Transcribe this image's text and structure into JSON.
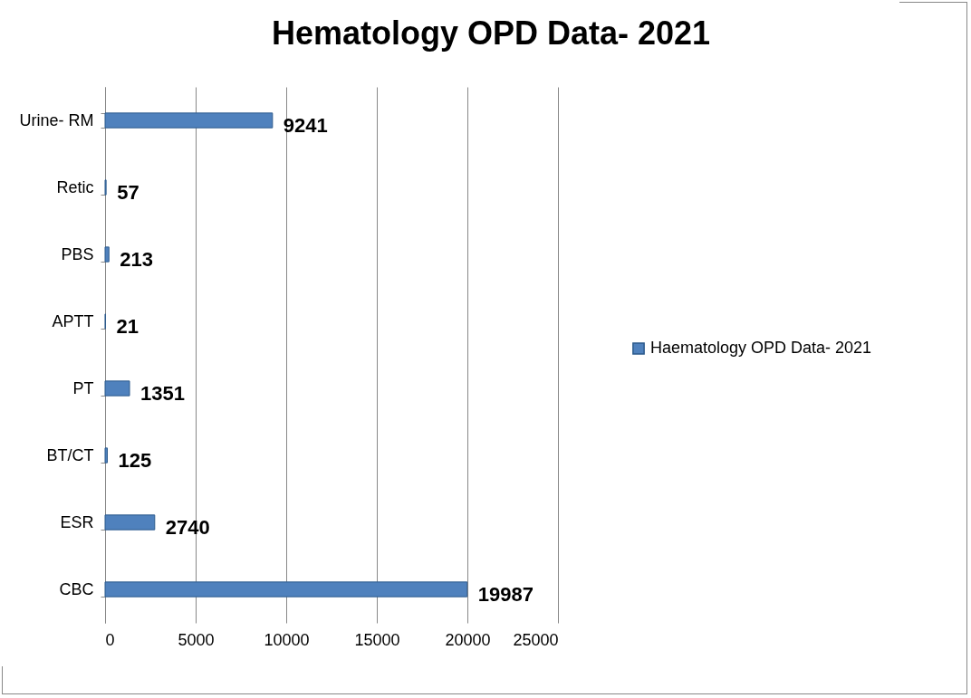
{
  "chart_data": {
    "type": "bar",
    "orientation": "horizontal",
    "title": "Hematology OPD Data- 2021",
    "categories": [
      "Urine- RM",
      "Retic",
      "PBS",
      "APTT",
      "PT",
      "BT/CT",
      "ESR",
      "CBC"
    ],
    "series": [
      {
        "name": "Haematology OPD Data- 2021",
        "color": "#4f81bd",
        "values": [
          9241,
          57,
          213,
          21,
          1351,
          125,
          2740,
          19987
        ]
      }
    ],
    "xlim": [
      0,
      25000
    ],
    "xticks": [
      0,
      5000,
      10000,
      15000,
      20000,
      25000
    ],
    "grid": "x",
    "data_labels": true,
    "legend": "right"
  }
}
